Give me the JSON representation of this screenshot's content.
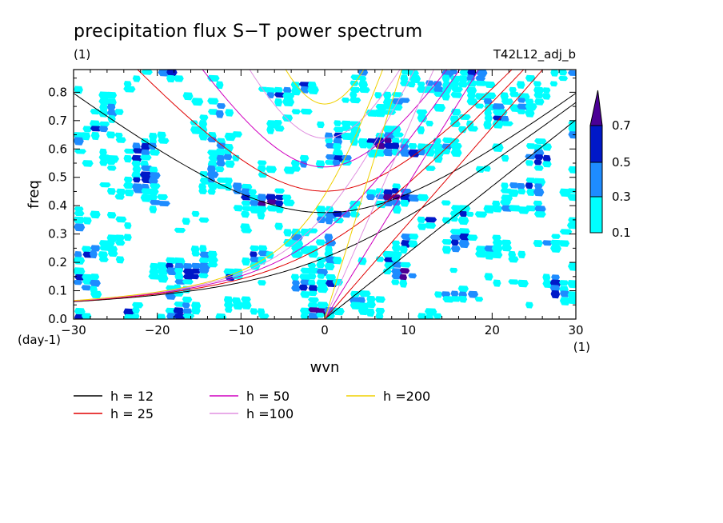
{
  "chart_data": {
    "type": "contour",
    "title": "precipitation flux S−T power spectrum",
    "subtitle_left": "(1)",
    "subtitle_right": "T42L12_adj_b",
    "xlabel": "wvn",
    "ylabel": "freq",
    "x_unit": "(1)",
    "y_unit": "(day-1)",
    "xlim": [
      -30,
      30
    ],
    "ylim": [
      0.0,
      0.88
    ],
    "xticks": [
      -30,
      -20,
      -10,
      0,
      10,
      20,
      30
    ],
    "xtick_labels": [
      "−30",
      "−20",
      "−10",
      "0",
      "10",
      "20",
      "30"
    ],
    "yticks": [
      0.0,
      0.1,
      0.2,
      0.3,
      0.4,
      0.5,
      0.6,
      0.7,
      0.8
    ],
    "ytick_labels": [
      "0.0",
      "0.1",
      "0.2",
      "0.3",
      "0.4",
      "0.5",
      "0.6",
      "0.7",
      "0.8"
    ],
    "colorbar": {
      "levels": [
        "0.1",
        "0.3",
        "0.5",
        "0.7"
      ],
      "colors": [
        "#00ffff",
        "#1e8cff",
        "#0018c8",
        "#4b0096"
      ]
    },
    "dispersion_curves": [
      {
        "name": "h = 12",
        "h": 12,
        "color": "#000000"
      },
      {
        "name": "h = 25",
        "h": 25,
        "color": "#e00000"
      },
      {
        "name": "h = 50",
        "h": 50,
        "color": "#d000c0"
      },
      {
        "name": "h =100",
        "h": 100,
        "color": "#e090e0"
      },
      {
        "name": "h =200",
        "h": 200,
        "color": "#f0d000"
      }
    ],
    "legend_placement": "bottom-left"
  }
}
